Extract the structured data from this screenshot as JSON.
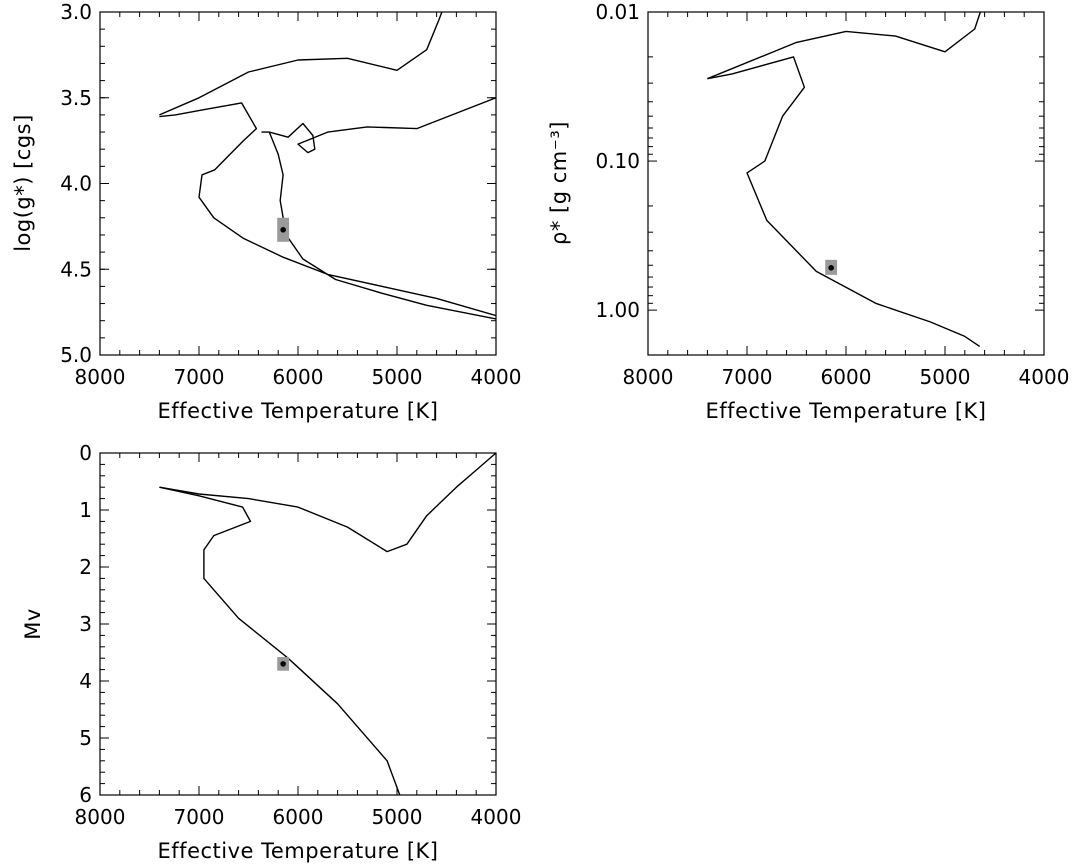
{
  "chart_data": [
    {
      "type": "line",
      "id": "logg",
      "xlabel": "Effective Temperature [K]",
      "ylabel": "log(g*) [cgs]",
      "xlim": [
        8000,
        4000
      ],
      "ylim": [
        3.0,
        5.0
      ],
      "x_ticks": [
        8000,
        7000,
        6000,
        5000,
        4000
      ],
      "x_tick_labels": [
        "8000",
        "7000",
        "6000",
        "5000",
        "4000"
      ],
      "y_ticks": [
        3.0,
        3.5,
        4.0,
        4.5,
        5.0
      ],
      "y_tick_labels": [
        "3.0",
        "3.5",
        "4.0",
        "4.5",
        "5.0"
      ],
      "star": {
        "teff": 6150,
        "value": 4.27,
        "err_teff": 60,
        "err_value": 0.07
      },
      "series": [
        {
          "x": [
            7400,
            7240,
            6960,
            6570,
            6420,
            6550,
            6840,
            6970,
            7000,
            6850,
            6550,
            6150,
            5700,
            5150,
            4600,
            4000
          ],
          "y": [
            3.61,
            3.6,
            3.57,
            3.53,
            3.68,
            3.75,
            3.92,
            3.95,
            4.08,
            4.2,
            4.32,
            4.43,
            4.53,
            4.6,
            4.67,
            4.77
          ]
        },
        {
          "x": [
            7400,
            7000,
            6500,
            6000,
            5500,
            5000,
            4700,
            4580,
            4500
          ],
          "y": [
            3.6,
            3.5,
            3.35,
            3.28,
            3.27,
            3.34,
            3.22,
            3.05,
            2.93
          ]
        },
        {
          "x": [
            6370,
            6290,
            6100,
            5950,
            5850,
            5830,
            5900,
            6000,
            5700,
            5300,
            4800,
            4000
          ],
          "y": [
            3.7,
            3.7,
            3.73,
            3.65,
            3.72,
            3.8,
            3.82,
            3.77,
            3.7,
            3.67,
            3.68,
            3.5
          ]
        },
        {
          "x": [
            6290,
            6200,
            6150,
            6180,
            6120,
            5950,
            5620,
            5150,
            4700,
            4000
          ],
          "y": [
            3.7,
            3.83,
            3.95,
            4.1,
            4.3,
            4.44,
            4.56,
            4.64,
            4.71,
            4.79
          ]
        }
      ]
    },
    {
      "type": "line",
      "id": "density",
      "xlabel": "Effective Temperature [K]",
      "ylabel": "ρ* [g cm⁻³]",
      "xlim": [
        8000,
        4000
      ],
      "ylim": [
        0.01,
        2.0
      ],
      "y_scale": "log",
      "y_reversed": true,
      "x_ticks": [
        8000,
        7000,
        6000,
        5000,
        4000
      ],
      "x_tick_labels": [
        "8000",
        "7000",
        "6000",
        "5000",
        "4000"
      ],
      "y_ticks": [
        0.01,
        0.1,
        1.0
      ],
      "y_tick_labels": [
        "0.01",
        "0.10",
        "1.00"
      ],
      "star": {
        "teff": 6150,
        "value": 0.52,
        "err_teff": 60,
        "err_value": 0.06
      },
      "series": [
        {
          "x": [
            7400,
            7150,
            6530,
            6420,
            6640,
            6820,
            7000,
            6800,
            6300,
            5700,
            5150,
            4800,
            4650
          ],
          "y": [
            0.028,
            0.026,
            0.02,
            0.032,
            0.05,
            0.1,
            0.12,
            0.25,
            0.55,
            0.9,
            1.2,
            1.5,
            1.75
          ]
        },
        {
          "x": [
            7400,
            6500,
            6000,
            5500,
            5000,
            4700,
            4620,
            4550
          ],
          "y": [
            0.028,
            0.016,
            0.0135,
            0.0145,
            0.0185,
            0.013,
            0.009,
            0.007
          ]
        }
      ]
    },
    {
      "type": "line",
      "id": "mv",
      "xlabel": "Effective Temperature [K]",
      "ylabel": "Mv",
      "xlim": [
        8000,
        4000
      ],
      "ylim": [
        0,
        6
      ],
      "y_reversed": true,
      "x_ticks": [
        8000,
        7000,
        6000,
        5000,
        4000
      ],
      "x_tick_labels": [
        "8000",
        "7000",
        "6000",
        "5000",
        "4000"
      ],
      "y_ticks": [
        0,
        1,
        2,
        3,
        4,
        5,
        6
      ],
      "y_tick_labels": [
        "0",
        "1",
        "2",
        "3",
        "4",
        "5",
        "6"
      ],
      "star": {
        "teff": 6150,
        "value": 3.7,
        "err_teff": 60,
        "err_value": 0.12
      },
      "series": [
        {
          "x": [
            7400,
            7000,
            6560,
            6480,
            6850,
            6950,
            6950,
            6600,
            6100,
            5600,
            5100,
            4950
          ],
          "y": [
            0.6,
            0.75,
            0.95,
            1.2,
            1.45,
            1.7,
            2.2,
            2.9,
            3.6,
            4.4,
            5.4,
            6.1
          ]
        },
        {
          "x": [
            7400,
            7000,
            6500,
            6000,
            5500,
            5100,
            4900,
            4700,
            4400,
            4200,
            4000
          ],
          "y": [
            0.6,
            0.72,
            0.8,
            0.95,
            1.3,
            1.73,
            1.6,
            1.1,
            0.6,
            0.3,
            0.0
          ]
        }
      ]
    }
  ]
}
